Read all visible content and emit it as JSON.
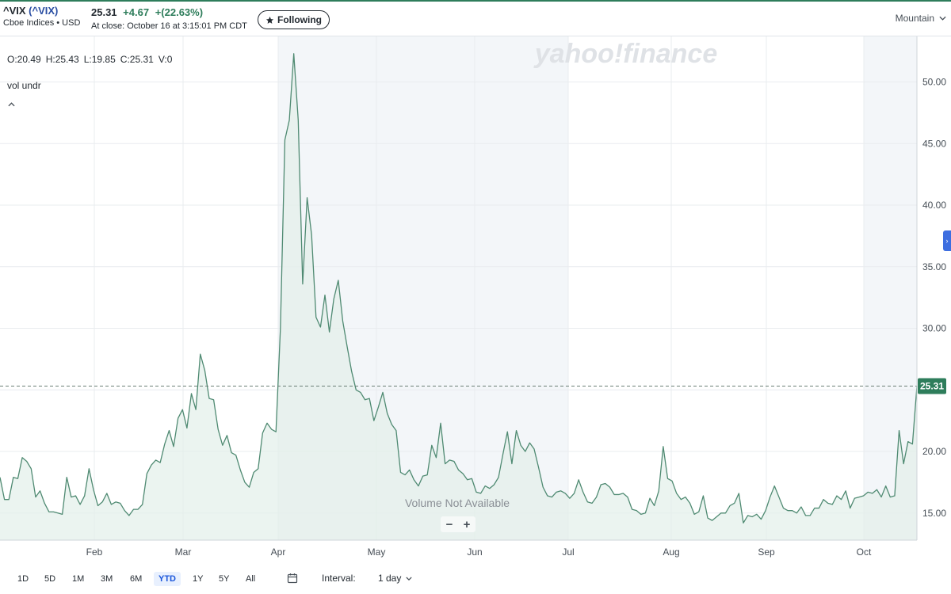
{
  "header": {
    "symbol": "^VIX",
    "symbol_paren": "(^VIX)",
    "exchange_line": "Cboe Indices • USD",
    "price": "25.31",
    "change": "+4.67",
    "change_pct": "+(22.63%)",
    "close_time": "At close: October 16 at 3:15:01 PM CDT",
    "follow_label": "Following",
    "timezone": "Mountain"
  },
  "ohlc": {
    "open": "O:20.49",
    "high": "H:25.43",
    "low": "L:19.85",
    "close": "C:25.31",
    "volume": "V:0"
  },
  "study_label": "vol undr",
  "watermark": "yahoo!finance",
  "volume_note": "Volume Not Available",
  "zoom": {
    "minus": "−",
    "plus": "+"
  },
  "range_bar": {
    "buttons": [
      "1D",
      "5D",
      "1M",
      "3M",
      "6M",
      "YTD",
      "1Y",
      "5Y",
      "All"
    ],
    "active": "YTD",
    "interval_label": "Interval:",
    "interval_value": "1 day"
  },
  "colors": {
    "line": "#4f8a72",
    "fill": "#e3efea",
    "accent_green": "#2e7d5b",
    "link_blue": "#2b4fa3"
  },
  "icons": [
    "star-icon",
    "chevron-down-icon",
    "calendar-icon",
    "caret-up-icon"
  ],
  "chart_data": {
    "type": "area",
    "x_label_months": [
      "Feb",
      "Mar",
      "Apr",
      "May",
      "Jun",
      "Jul",
      "Aug",
      "Sep",
      "Oct"
    ],
    "y_ticks": [
      "15.00",
      "20.00",
      "25.00",
      "30.00",
      "35.00",
      "40.00",
      "45.00",
      "50.00"
    ],
    "ylim": [
      12.8,
      53.7
    ],
    "last_value_label": "25.31",
    "reference_line": 25.31,
    "shaded_periods": [
      "Apr–Jun",
      "Oct"
    ],
    "series": [
      {
        "values": [
          17.9,
          16.1,
          16.1,
          17.9,
          17.8,
          19.5,
          19.2,
          18.6,
          16.3,
          16.8,
          15.8,
          15.1,
          15.1,
          15.0,
          14.9,
          17.9,
          16.3,
          16.4,
          15.7,
          16.4,
          18.6,
          16.9,
          15.6,
          15.9,
          16.6,
          15.7,
          15.9,
          15.8,
          15.2,
          14.8,
          15.3,
          15.3,
          15.7,
          18.2,
          18.9,
          19.3,
          19.1,
          20.6,
          21.7,
          20.4,
          22.7,
          23.4,
          21.9,
          24.7,
          23.4,
          27.9,
          26.6,
          24.3,
          24.2,
          21.8,
          20.5,
          21.3,
          19.9,
          19.7,
          18.5,
          17.5,
          17.1,
          18.3,
          18.6,
          21.5,
          22.3,
          21.8,
          21.6,
          30.0,
          45.3,
          46.9,
          52.3,
          46.9,
          33.6,
          40.6,
          37.6,
          30.9,
          30.1,
          32.7,
          29.7,
          32.4,
          33.9,
          30.6,
          28.5,
          26.5,
          25.0,
          24.8,
          24.2,
          24.3,
          22.5,
          23.6,
          24.8,
          23.1,
          22.2,
          21.7,
          18.3,
          18.1,
          18.5,
          17.7,
          17.2,
          18.0,
          18.1,
          20.5,
          19.5,
          22.3,
          19.0,
          19.3,
          19.2,
          18.5,
          18.2,
          17.7,
          17.8,
          16.7,
          16.6,
          17.2,
          17.0,
          17.3,
          17.9,
          19.8,
          21.6,
          19.0,
          21.7,
          20.5,
          20.0,
          20.7,
          20.2,
          18.7,
          17.1,
          16.4,
          16.3,
          16.7,
          16.8,
          16.6,
          16.2,
          16.6,
          17.7,
          16.7,
          15.9,
          15.8,
          16.3,
          17.3,
          17.4,
          17.1,
          16.5,
          16.5,
          16.6,
          16.3,
          15.3,
          15.2,
          14.9,
          15.0,
          16.2,
          15.6,
          16.8,
          20.4,
          17.8,
          17.6,
          16.6,
          16.1,
          16.3,
          15.8,
          14.9,
          15.1,
          16.4,
          14.6,
          14.4,
          14.7,
          15.0,
          15.0,
          15.6,
          15.8,
          16.6,
          14.2,
          14.8,
          14.7,
          14.9,
          14.5,
          15.2,
          16.3,
          17.2,
          16.3,
          15.4,
          15.2,
          15.2,
          15.0,
          15.5,
          14.8,
          14.8,
          15.4,
          15.4,
          16.1,
          15.8,
          15.7,
          16.4,
          16.1,
          16.8,
          15.4,
          16.2,
          16.3,
          16.4,
          16.7,
          16.6,
          16.9,
          16.3,
          17.2,
          16.3,
          16.4,
          21.7,
          19.0,
          20.8,
          20.6,
          25.3
        ]
      }
    ]
  }
}
